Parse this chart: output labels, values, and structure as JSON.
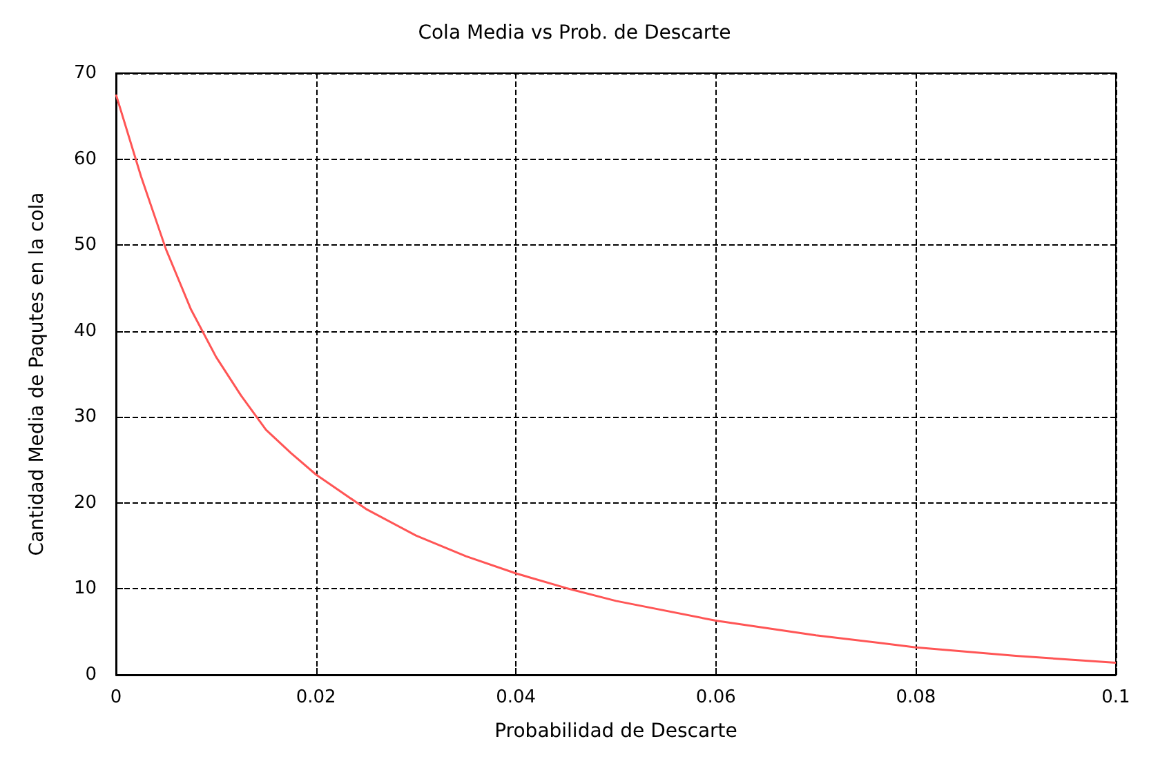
{
  "chart_data": {
    "type": "line",
    "title": "Cola Media vs Prob. de Descarte",
    "xlabel": "Probabilidad de Descarte",
    "ylabel": "Cantidad Media de Paqutes en la cola",
    "x": [
      0,
      0.0025,
      0.005,
      0.0075,
      0.01,
      0.0125,
      0.015,
      0.0175,
      0.02,
      0.025,
      0.03,
      0.035,
      0.04,
      0.045,
      0.05,
      0.06,
      0.07,
      0.08,
      0.09,
      0.1
    ],
    "series": [
      {
        "color": "#ff5555",
        "values": [
          67.5,
          58,
          49.5,
          42.5,
          37,
          32.5,
          28.5,
          25.8,
          23.3,
          19.3,
          16.2,
          13.8,
          11.8,
          10.1,
          8.6,
          6.3,
          4.6,
          3.2,
          2.2,
          1.4
        ]
      }
    ],
    "xlim": [
      0,
      0.1
    ],
    "xticks": [
      0,
      0.02,
      0.04,
      0.06,
      0.08,
      0.1
    ],
    "ylim": [
      0,
      70
    ],
    "yticks": [
      0,
      10,
      20,
      30,
      40,
      50,
      60,
      70
    ],
    "grid": true,
    "marker": "none",
    "line_style": "solid"
  }
}
